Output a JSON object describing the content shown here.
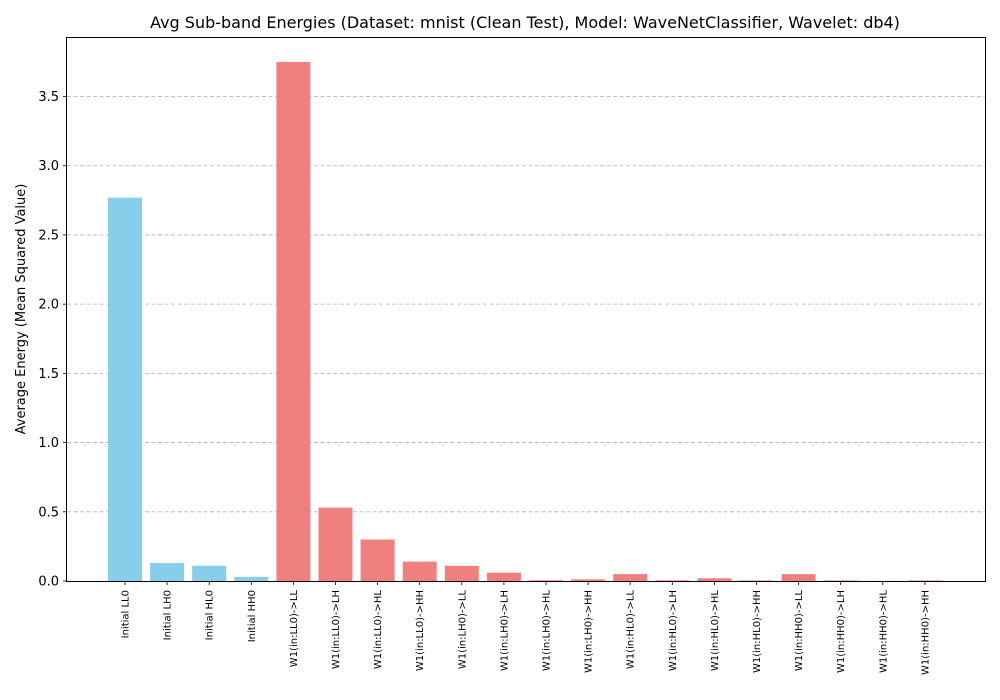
{
  "chart_data": {
    "type": "bar",
    "title": "Avg Sub-band Energies (Dataset: mnist (Clean Test), Model: WaveNetClassifier, Wavelet: db4)",
    "xlabel": "",
    "ylabel": "Average Energy (Mean Squared Value)",
    "ylim": [
      0,
      3.93
    ],
    "yticks": [
      "0.0",
      "0.5",
      "1.0",
      "1.5",
      "2.0",
      "2.5",
      "3.0",
      "3.5"
    ],
    "grid": "y-dashed",
    "categories": [
      "Initial LL0",
      "Initial LH0",
      "Initial HL0",
      "Initial HH0",
      "W1(in:LL0)->LL",
      "W1(in:LL0)->LH",
      "W1(in:LL0)->HL",
      "W1(in:LL0)->HH",
      "W1(in:LH0)->LL",
      "W1(in:LH0)->LH",
      "W1(in:LH0)->HL",
      "W1(in:LH0)->HH",
      "W1(in:HL0)->LL",
      "W1(in:HL0)->LH",
      "W1(in:HL0)->HL",
      "W1(in:HL0)->HH",
      "W1(in:HH0)->LL",
      "W1(in:HH0)->LH",
      "W1(in:HH0)->HL",
      "W1(in:HH0)->HH"
    ],
    "values": [
      2.77,
      0.13,
      0.11,
      0.03,
      3.75,
      0.53,
      0.3,
      0.14,
      0.11,
      0.06,
      0.005,
      0.012,
      0.05,
      0.005,
      0.02,
      0.004,
      0.05,
      0.004,
      0.001,
      0.004
    ],
    "colors": {
      "initial": "#87ceeb",
      "w1": "#f08080"
    },
    "bar_groups": [
      "initial",
      "initial",
      "initial",
      "initial",
      "w1",
      "w1",
      "w1",
      "w1",
      "w1",
      "w1",
      "w1",
      "w1",
      "w1",
      "w1",
      "w1",
      "w1",
      "w1",
      "w1",
      "w1",
      "w1"
    ]
  }
}
